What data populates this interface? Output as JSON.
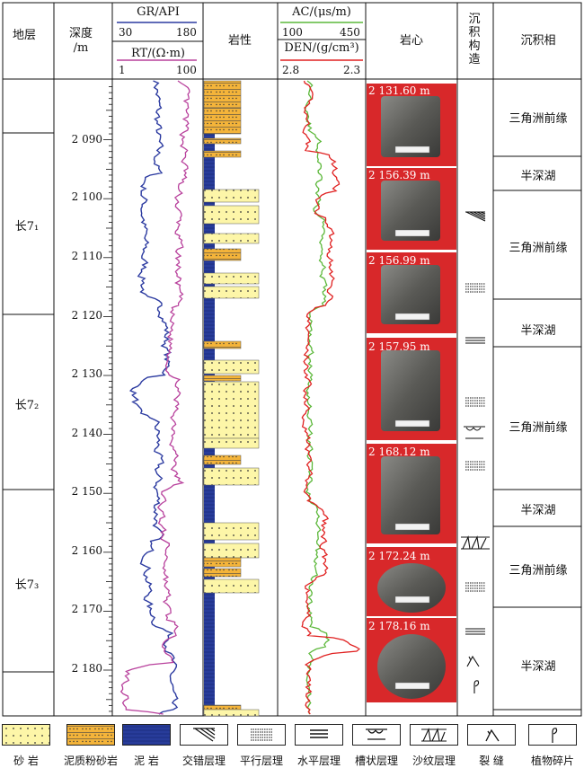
{
  "headers": {
    "strata": "地层",
    "depth": "深度",
    "depth_unit": "/m",
    "gr_title": "GR/API",
    "gr_min": "30",
    "gr_max": "180",
    "rt_title": "RT/(Ω·m)",
    "rt_min": "1",
    "rt_max": "100",
    "lithology": "岩性",
    "ac_title": "AC/(μs/m)",
    "ac_min": "100",
    "ac_max": "450",
    "den_title": "DEN/(g/cm³)",
    "den_min": "2.8",
    "den_max": "2.3",
    "core": "岩心",
    "structure": "沉积构造",
    "facies": "沉积相"
  },
  "strata": [
    "长7₁",
    "长7₂",
    "长7₃"
  ],
  "depth_ticks": [
    "2 090",
    "2 100",
    "2 110",
    "2 120",
    "2 130",
    "2 140",
    "2 150",
    "2 160",
    "2 170",
    "2 180"
  ],
  "cores": [
    "2 131.60 m",
    "2 156.39 m",
    "2 156.99 m",
    "2 157.95 m",
    "2 168.12 m",
    "2 172.24 m",
    "2 178.16 m"
  ],
  "facies": [
    "三角洲前缘",
    "半深湖",
    "三角洲前缘",
    "半深湖",
    "三角洲前缘",
    "半深湖",
    "三角洲前缘",
    "半深湖"
  ],
  "legend": [
    "砂 岩",
    "泥质粉砂岩",
    "泥 岩",
    "交错层理",
    "平行层理",
    "水平层理",
    "槽状层理",
    "沙纹层理",
    "裂 缝",
    "植物碎片"
  ],
  "colors": {
    "gr": "#2b3aa0",
    "rt": "#b8409c",
    "ac": "#5cb83a",
    "den": "#e02020",
    "sandstone": "#fdf6a8",
    "silty_mudstone": "#f4b43a",
    "mudstone": "#283c9a",
    "core_bg": "#d8282a"
  }
}
